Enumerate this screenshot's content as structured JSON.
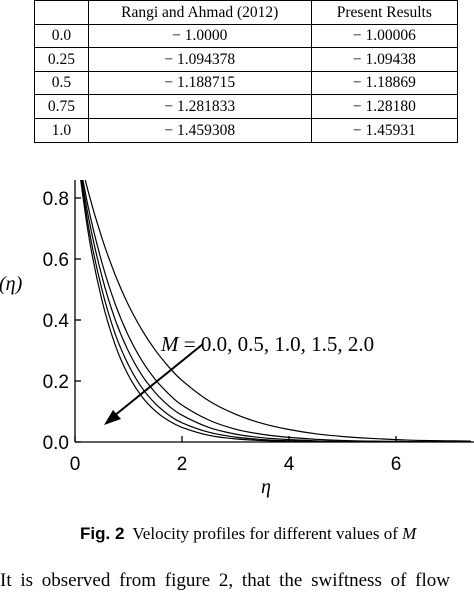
{
  "table": {
    "headers": [
      "",
      "Rangi and Ahmad (2012)",
      "Present Results"
    ],
    "rows": [
      [
        "0.0",
        "− 1.0000",
        "− 1.00006"
      ],
      [
        "0.25",
        "− 1.094378",
        "− 1.09438"
      ],
      [
        "0.5",
        "− 1.188715",
        "− 1.18869"
      ],
      [
        "0.75",
        "− 1.281833",
        "− 1.28180"
      ],
      [
        "1.0",
        "− 1.459308",
        "− 1.45931"
      ]
    ]
  },
  "chart_data": {
    "type": "line",
    "xlabel": "η",
    "ylabel": "(η)",
    "xlim": [
      0,
      7.4
    ],
    "ylim": [
      0,
      0.9
    ],
    "xticks": [
      "0",
      "2",
      "4",
      "6"
    ],
    "yticks": [
      "0.0",
      "0.2",
      "0.4",
      "0.6",
      "0.8"
    ],
    "grid": false,
    "annotation": {
      "symbol": "M",
      "text": " = 0.0, 0.5, 1.0, 1.5, 2.0"
    },
    "x": [
      0,
      0.25,
      0.5,
      0.75,
      1,
      1.25,
      1.5,
      1.75,
      2,
      2.5,
      3,
      3.5,
      4,
      4.5,
      5,
      5.5,
      6,
      6.5,
      7,
      7.4
    ],
    "series": [
      {
        "values": [
          1.0,
          0.683,
          0.467,
          0.319,
          0.218,
          0.149,
          0.102,
          0.07,
          0.048,
          0.022,
          0.01,
          0.005,
          0.002,
          0.001,
          0.0005,
          0.0002,
          0.0001,
          0.0,
          0.0,
          0.0
        ]
      },
      {
        "values": [
          1.0,
          0.708,
          0.502,
          0.355,
          0.252,
          0.178,
          0.126,
          0.089,
          0.063,
          0.032,
          0.016,
          0.008,
          0.004,
          0.002,
          0.001,
          0.0005,
          0.0002,
          0.0001,
          0.0,
          0.0
        ]
      },
      {
        "values": [
          1.0,
          0.738,
          0.545,
          0.402,
          0.297,
          0.219,
          0.162,
          0.119,
          0.088,
          0.048,
          0.026,
          0.014,
          0.008,
          0.004,
          0.002,
          0.001,
          0.0006,
          0.0003,
          0.0002,
          0.0001
        ]
      },
      {
        "values": [
          1.0,
          0.768,
          0.59,
          0.453,
          0.348,
          0.267,
          0.205,
          0.158,
          0.121,
          0.072,
          0.042,
          0.025,
          0.015,
          0.009,
          0.005,
          0.003,
          0.002,
          0.001,
          0.0006,
          0.0004
        ]
      },
      {
        "values": [
          1.0,
          0.819,
          0.67,
          0.549,
          0.449,
          0.368,
          0.301,
          0.247,
          0.202,
          0.135,
          0.091,
          0.061,
          0.041,
          0.027,
          0.018,
          0.012,
          0.008,
          0.005,
          0.004,
          0.003
        ]
      }
    ]
  },
  "caption": {
    "label": "Fig. 2",
    "text": "Velocity profiles for different values of ",
    "symbol": "M"
  },
  "body_text": "It is observed from figure 2, that the swiftness of flow"
}
